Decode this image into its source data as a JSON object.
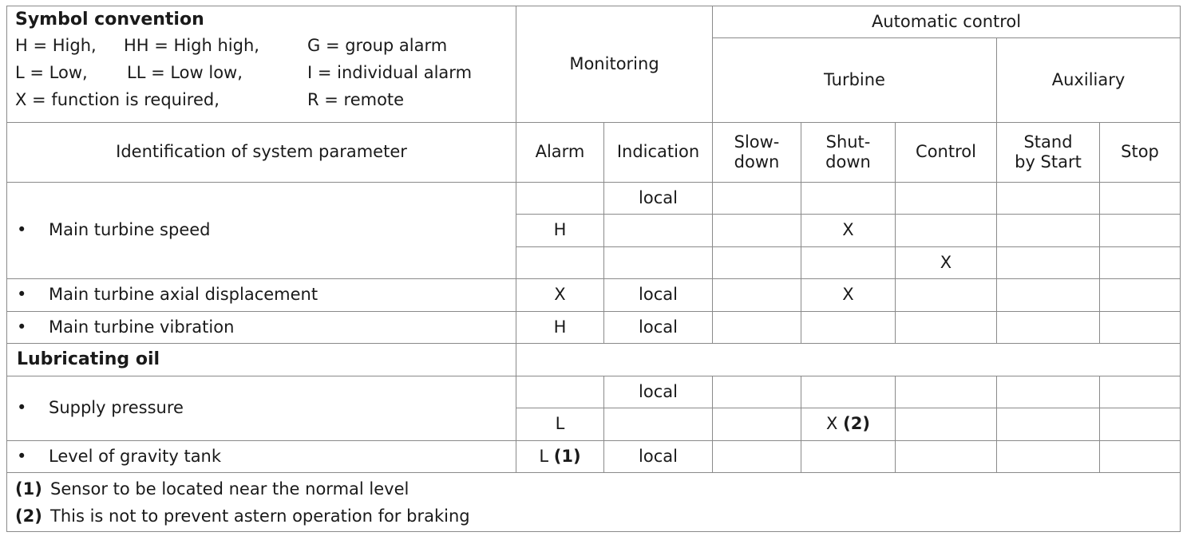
{
  "legend": {
    "title": "Symbol convention",
    "lines": [
      [
        "H = High,",
        "HH = High high,",
        "G = group alarm"
      ],
      [
        "L = Low,",
        "LL  = Low low,",
        "I  = individual alarm"
      ],
      [
        "X  = function is required,",
        "R = remote"
      ]
    ]
  },
  "headers": {
    "monitoring": "Monitoring",
    "automatic_control": "Automatic control",
    "turbine": "Turbine",
    "auxiliary": "Auxiliary",
    "identification": "Identification of system parameter",
    "alarm": "Alarm",
    "indication": "Indication",
    "slowdown": "Slow-\ndown",
    "shutdown": "Shut-\ndown",
    "control": "Control",
    "standby_start": "Stand\nby Start",
    "stop": "Stop"
  },
  "rows": {
    "speed": {
      "label": "Main turbine speed",
      "r1_indication": "local",
      "r2_alarm": "H",
      "r2_shutdown": "X",
      "r3_control": "X"
    },
    "axial": {
      "label": "Main turbine axial displacement",
      "alarm": "X",
      "indication": "local",
      "shutdown": "X"
    },
    "vibration": {
      "label": "Main turbine vibration",
      "alarm": "H",
      "indication": "local"
    },
    "lube_section": "Lubricating oil",
    "supply": {
      "label": "Supply pressure",
      "r1_indication": "local",
      "r2_alarm": "L",
      "r2_shutdown": "X",
      "r2_shutdown_ref": "(2)"
    },
    "gravity": {
      "label": "Level of gravity tank",
      "alarm": "L",
      "alarm_ref": "(1)",
      "indication": "local"
    }
  },
  "bullet": "•",
  "notes": [
    {
      "ref": "(1)",
      "text": "Sensor to be located near the normal level"
    },
    {
      "ref": "(2)",
      "text": "This is not to prevent astern operation for braking"
    }
  ]
}
